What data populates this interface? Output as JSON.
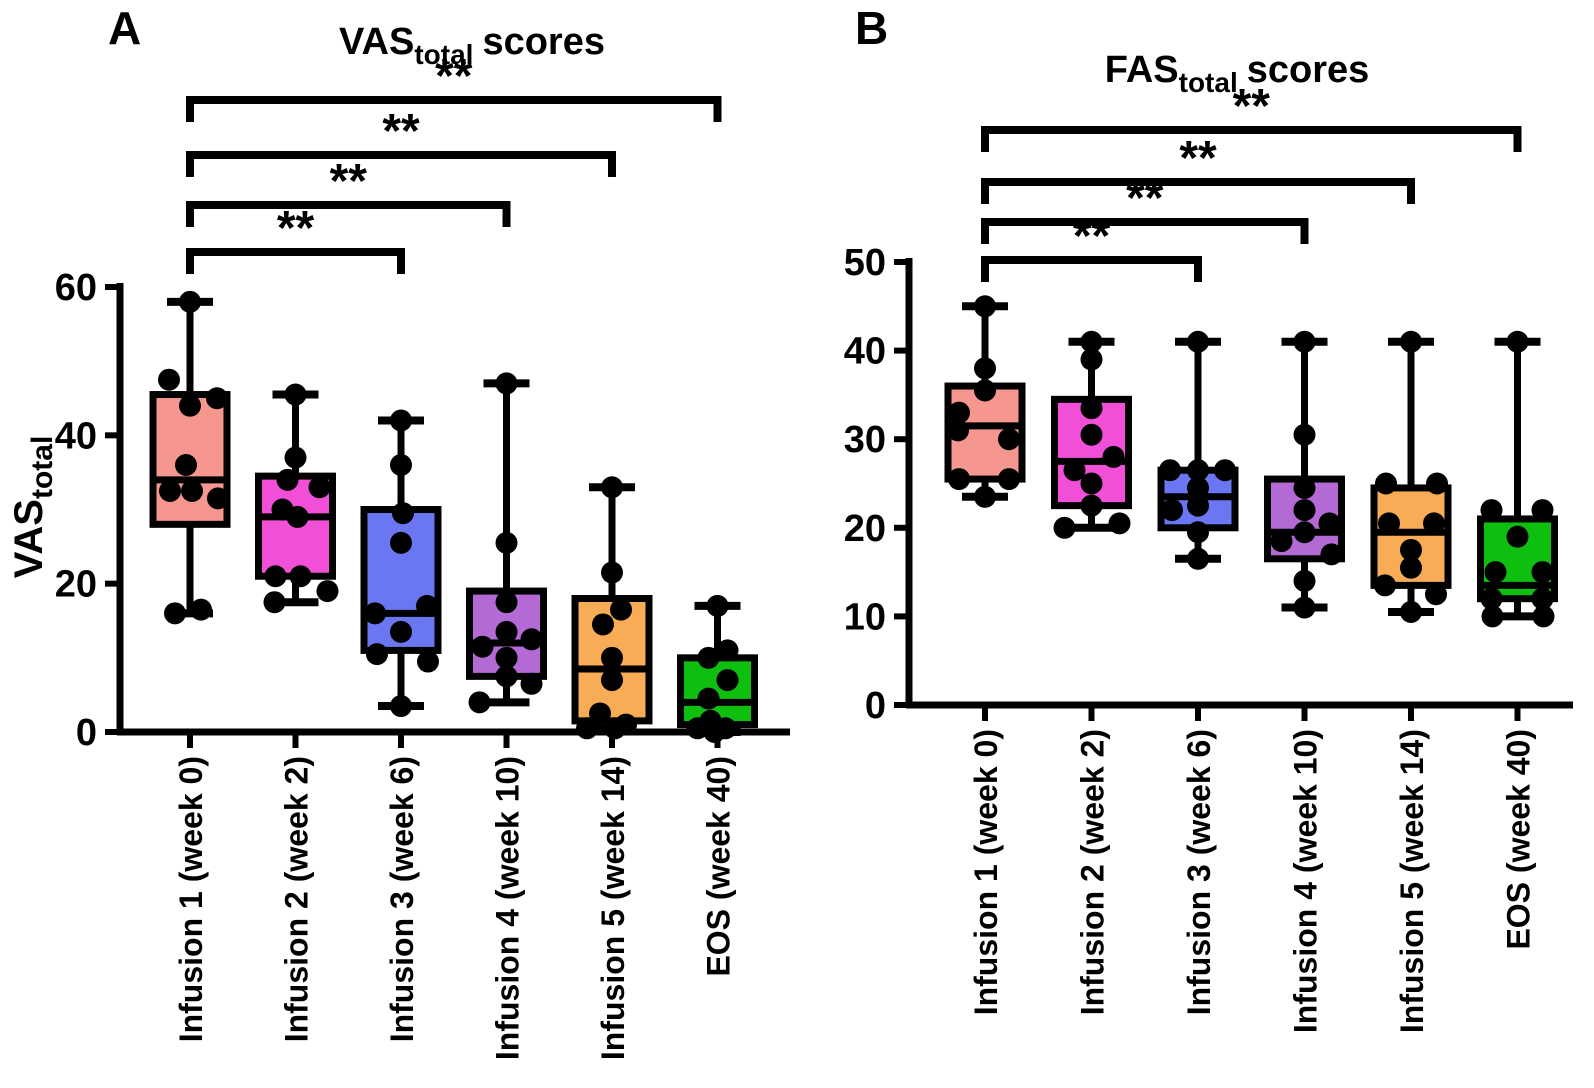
{
  "chart_data": [
    {
      "type": "boxplot",
      "panel_label": "A",
      "title": {
        "main": "VAS",
        "sub": "total",
        "suffix": "scores"
      },
      "y_axis_label": {
        "main": "VAS",
        "sub": "total"
      },
      "ylim": [
        0,
        60
      ],
      "yticks": [
        0,
        20,
        40,
        60
      ],
      "grid": false,
      "categories": [
        "Infusion 1 (week 0)",
        "Infusion 2 (week 2)",
        "Infusion 3 (week 6)",
        "Infusion 4 (week 10)",
        "Infusion 5 (week 14)",
        "EOS (week 40)"
      ],
      "series": [
        {
          "name": "Infusion 1 (week 0)",
          "color": "#F5978E",
          "box": {
            "whisker_low": 16,
            "q1": 28,
            "median": 34,
            "q3": 45.5,
            "whisker_high": 58
          },
          "points": [
            [
              58,
              0
            ],
            [
              47.5,
              -21
            ],
            [
              45,
              27
            ],
            [
              44,
              0
            ],
            [
              36,
              -4
            ],
            [
              32.5,
              -20
            ],
            [
              32.5,
              2
            ],
            [
              31.5,
              28
            ],
            [
              16,
              -15
            ],
            [
              16.5,
              11
            ]
          ]
        },
        {
          "name": "Infusion 2 (week 2)",
          "color": "#F24FD8",
          "box": {
            "whisker_low": 17.5,
            "q1": 21,
            "median": 29,
            "q3": 34.5,
            "whisker_high": 45.5
          },
          "points": [
            [
              45.5,
              0
            ],
            [
              37,
              0
            ],
            [
              34,
              -8
            ],
            [
              33,
              24
            ],
            [
              30,
              -13
            ],
            [
              29,
              2
            ],
            [
              21,
              -20
            ],
            [
              21,
              5
            ],
            [
              19,
              32
            ],
            [
              17.5,
              -21
            ]
          ]
        },
        {
          "name": "Infusion 3 (week 6)",
          "color": "#6B77F2",
          "box": {
            "whisker_low": 3.5,
            "q1": 11,
            "median": 16,
            "q3": 30,
            "whisker_high": 42
          },
          "points": [
            [
              42,
              0
            ],
            [
              36,
              0
            ],
            [
              29.5,
              2
            ],
            [
              25.5,
              0
            ],
            [
              17,
              26
            ],
            [
              16,
              -26
            ],
            [
              13.5,
              0
            ],
            [
              10.5,
              -24
            ],
            [
              9.5,
              27
            ],
            [
              3.5,
              0
            ]
          ]
        },
        {
          "name": "Infusion 4 (week 10)",
          "color": "#B46AD5",
          "box": {
            "whisker_low": 4,
            "q1": 7.5,
            "median": 12,
            "q3": 19,
            "whisker_high": 47
          },
          "points": [
            [
              47,
              0
            ],
            [
              25.5,
              0
            ],
            [
              17.5,
              0
            ],
            [
              13.5,
              0
            ],
            [
              12.5,
              25
            ],
            [
              11.5,
              -24
            ],
            [
              10,
              0
            ],
            [
              7.5,
              0
            ],
            [
              6.5,
              25
            ],
            [
              4,
              -27
            ]
          ]
        },
        {
          "name": "Infusion 5 (week 14)",
          "color": "#F7AC55",
          "box": {
            "whisker_low": 0.5,
            "q1": 1.5,
            "median": 8.5,
            "q3": 18,
            "whisker_high": 33
          },
          "points": [
            [
              33,
              0
            ],
            [
              21.5,
              0
            ],
            [
              16.5,
              9
            ],
            [
              14.5,
              -9
            ],
            [
              10,
              0
            ],
            [
              7,
              0
            ],
            [
              2.5,
              -12
            ],
            [
              1,
              14
            ],
            [
              0.5,
              -25
            ],
            [
              0.5,
              3
            ]
          ]
        },
        {
          "name": "EOS (week 40)",
          "color": "#0FBF0F",
          "box": {
            "whisker_low": 0,
            "q1": 1,
            "median": 4,
            "q3": 10,
            "whisker_high": 17
          },
          "points": [
            [
              17,
              0
            ],
            [
              11,
              10
            ],
            [
              10,
              -9
            ],
            [
              7,
              10
            ],
            [
              4.5,
              -9
            ],
            [
              1.5,
              -7
            ],
            [
              0.5,
              -20
            ],
            [
              0.5,
              8
            ],
            [
              0,
              -3
            ]
          ]
        }
      ],
      "significance_brackets": [
        {
          "from_category": 0,
          "to_category": 5,
          "label": "**"
        },
        {
          "from_category": 0,
          "to_category": 4,
          "label": "**"
        },
        {
          "from_category": 0,
          "to_category": 3,
          "label": "**"
        },
        {
          "from_category": 0,
          "to_category": 2,
          "label": "**"
        }
      ]
    },
    {
      "type": "boxplot",
      "panel_label": "B",
      "title": {
        "main": "FAS",
        "sub": "total",
        "suffix": "scores"
      },
      "y_axis_label": null,
      "ylim": [
        0,
        50
      ],
      "yticks": [
        0,
        10,
        20,
        30,
        40,
        50
      ],
      "grid": false,
      "categories": [
        "Infusion 1 (week 0)",
        "Infusion 2 (week 2)",
        "Infusion 3 (week 6)",
        "Infusion 4 (week 10)",
        "Infusion 5 (week 14)",
        "EOS (week 40)"
      ],
      "series": [
        {
          "name": "Infusion 1 (week 0)",
          "color": "#F5978E",
          "box": {
            "whisker_low": 23.5,
            "q1": 25.5,
            "median": 31.5,
            "q3": 36,
            "whisker_high": 45
          },
          "points": [
            [
              45,
              0
            ],
            [
              38,
              0
            ],
            [
              35.5,
              0
            ],
            [
              33,
              -26
            ],
            [
              31,
              -27
            ],
            [
              30,
              24
            ],
            [
              25.5,
              -26
            ],
            [
              25.5,
              24
            ],
            [
              23.5,
              0
            ]
          ]
        },
        {
          "name": "Infusion 2 (week 2)",
          "color": "#F24FD8",
          "box": {
            "whisker_low": 20,
            "q1": 22.5,
            "median": 27.5,
            "q3": 34.5,
            "whisker_high": 41
          },
          "points": [
            [
              41,
              0
            ],
            [
              39,
              0
            ],
            [
              33.5,
              0
            ],
            [
              30.5,
              0
            ],
            [
              28,
              22
            ],
            [
              26.5,
              -17
            ],
            [
              25,
              0
            ],
            [
              22.5,
              0
            ],
            [
              20.5,
              28
            ],
            [
              20,
              -27
            ]
          ]
        },
        {
          "name": "Infusion 3 (week 6)",
          "color": "#6B77F2",
          "box": {
            "whisker_low": 16.5,
            "q1": 20,
            "median": 23.5,
            "q3": 26.5,
            "whisker_high": 41
          },
          "points": [
            [
              41,
              0
            ],
            [
              26.5,
              -28
            ],
            [
              26.5,
              0
            ],
            [
              26.5,
              27
            ],
            [
              24.5,
              0
            ],
            [
              22.5,
              0
            ],
            [
              22,
              -26
            ],
            [
              19.5,
              0
            ],
            [
              16.5,
              0
            ]
          ]
        },
        {
          "name": "Infusion 4 (week 10)",
          "color": "#B46AD5",
          "box": {
            "whisker_low": 11,
            "q1": 16.5,
            "median": 19.5,
            "q3": 25.5,
            "whisker_high": 41
          },
          "points": [
            [
              41,
              0
            ],
            [
              30.5,
              0
            ],
            [
              24.5,
              0
            ],
            [
              22,
              0
            ],
            [
              20.5,
              25
            ],
            [
              19.5,
              0
            ],
            [
              18.5,
              -23
            ],
            [
              17,
              27
            ],
            [
              14,
              0
            ],
            [
              11,
              0
            ]
          ]
        },
        {
          "name": "Infusion 5 (week 14)",
          "color": "#F7AC55",
          "box": {
            "whisker_low": 10.5,
            "q1": 13.5,
            "median": 19.5,
            "q3": 24.5,
            "whisker_high": 41
          },
          "points": [
            [
              41,
              0
            ],
            [
              25,
              -25
            ],
            [
              25,
              26
            ],
            [
              20.5,
              -22
            ],
            [
              20.5,
              23
            ],
            [
              17.5,
              0
            ],
            [
              15.5,
              0
            ],
            [
              13.5,
              -26
            ],
            [
              12.5,
              25
            ],
            [
              10.5,
              0
            ]
          ]
        },
        {
          "name": "EOS (week 40)",
          "color": "#0FBF0F",
          "box": {
            "whisker_low": 10,
            "q1": 12,
            "median": 13.5,
            "q3": 21,
            "whisker_high": 41
          },
          "points": [
            [
              41,
              0
            ],
            [
              22,
              -26
            ],
            [
              22,
              25
            ],
            [
              19,
              0
            ],
            [
              15,
              -22
            ],
            [
              15,
              25
            ],
            [
              12,
              -26
            ],
            [
              12,
              25
            ],
            [
              10,
              -25
            ],
            [
              10,
              26
            ]
          ]
        }
      ],
      "significance_brackets": [
        {
          "from_category": 0,
          "to_category": 5,
          "label": "**"
        },
        {
          "from_category": 0,
          "to_category": 4,
          "label": "**"
        },
        {
          "from_category": 0,
          "to_category": 3,
          "label": "**"
        },
        {
          "from_category": 0,
          "to_category": 2,
          "label": "**"
        }
      ]
    }
  ]
}
